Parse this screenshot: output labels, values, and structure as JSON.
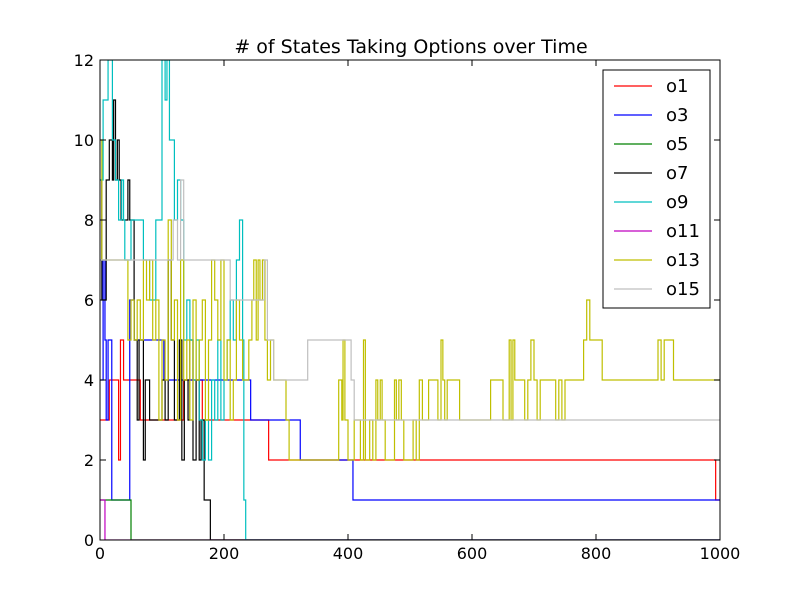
{
  "chart_data": {
    "type": "line",
    "title": "# of States Taking Options over Time",
    "xlabel": "",
    "ylabel": "",
    "xlim": [
      0,
      1000
    ],
    "ylim": [
      0,
      12
    ],
    "x_ticks": [
      0,
      200,
      400,
      600,
      800,
      1000
    ],
    "y_ticks": [
      0,
      2,
      4,
      6,
      8,
      10,
      12
    ],
    "grid": false,
    "legend_position": "top-right",
    "series": [
      {
        "name": "o1",
        "color": "#ff0000",
        "points": [
          [
            0,
            3
          ],
          [
            15,
            4
          ],
          [
            28,
            4
          ],
          [
            30,
            2
          ],
          [
            33,
            5
          ],
          [
            36,
            5
          ],
          [
            38,
            4
          ],
          [
            60,
            4
          ],
          [
            65,
            3
          ],
          [
            130,
            3
          ],
          [
            135,
            4
          ],
          [
            160,
            4
          ],
          [
            165,
            3
          ],
          [
            270,
            3
          ],
          [
            272,
            2
          ],
          [
            990,
            2
          ],
          [
            993,
            1
          ],
          [
            1000,
            1
          ]
        ]
      },
      {
        "name": "o3",
        "color": "#0000ff",
        "points": [
          [
            0,
            4
          ],
          [
            5,
            7
          ],
          [
            8,
            5
          ],
          [
            10,
            3
          ],
          [
            13,
            5
          ],
          [
            17,
            5
          ],
          [
            19,
            1
          ],
          [
            45,
            1
          ],
          [
            48,
            6
          ],
          [
            55,
            5
          ],
          [
            100,
            5
          ],
          [
            103,
            4
          ],
          [
            240,
            4
          ],
          [
            243,
            3
          ],
          [
            320,
            3
          ],
          [
            323,
            2
          ],
          [
            405,
            2
          ],
          [
            408,
            1
          ],
          [
            1000,
            1
          ]
        ]
      },
      {
        "name": "o5",
        "color": "#008000",
        "points": [
          [
            0,
            1
          ],
          [
            48,
            1
          ],
          [
            50,
            0
          ],
          [
            1000,
            0
          ]
        ]
      },
      {
        "name": "o7",
        "color": "#000000",
        "points": [
          [
            0,
            9
          ],
          [
            3,
            6
          ],
          [
            6,
            6
          ],
          [
            10,
            9
          ],
          [
            15,
            10
          ],
          [
            20,
            9
          ],
          [
            22,
            11
          ],
          [
            25,
            9
          ],
          [
            28,
            10
          ],
          [
            31,
            9
          ],
          [
            34,
            8
          ],
          [
            42,
            8
          ],
          [
            45,
            9
          ],
          [
            48,
            8
          ],
          [
            52,
            8
          ],
          [
            55,
            5
          ],
          [
            60,
            3
          ],
          [
            63,
            5
          ],
          [
            67,
            5
          ],
          [
            70,
            2
          ],
          [
            73,
            4
          ],
          [
            80,
            3
          ],
          [
            100,
            4
          ],
          [
            105,
            3
          ],
          [
            110,
            7
          ],
          [
            115,
            5
          ],
          [
            120,
            3
          ],
          [
            125,
            3
          ],
          [
            128,
            5
          ],
          [
            132,
            2
          ],
          [
            136,
            4
          ],
          [
            142,
            3
          ],
          [
            145,
            5
          ],
          [
            150,
            2
          ],
          [
            155,
            4
          ],
          [
            160,
            2
          ],
          [
            163,
            3
          ],
          [
            168,
            1
          ],
          [
            175,
            1
          ],
          [
            178,
            0
          ],
          [
            1000,
            0
          ]
        ]
      },
      {
        "name": "o9",
        "color": "#00bfbf",
        "points": [
          [
            0,
            9
          ],
          [
            5,
            11
          ],
          [
            10,
            11
          ],
          [
            13,
            12
          ],
          [
            15,
            12
          ],
          [
            20,
            10
          ],
          [
            25,
            9
          ],
          [
            30,
            8
          ],
          [
            35,
            9
          ],
          [
            38,
            8
          ],
          [
            40,
            7
          ],
          [
            45,
            7
          ],
          [
            50,
            8
          ],
          [
            60,
            8
          ],
          [
            70,
            7
          ],
          [
            80,
            6
          ],
          [
            90,
            8
          ],
          [
            100,
            12
          ],
          [
            105,
            11
          ],
          [
            108,
            12
          ],
          [
            112,
            10
          ],
          [
            116,
            10
          ],
          [
            120,
            8
          ],
          [
            125,
            9
          ],
          [
            130,
            8
          ],
          [
            135,
            5
          ],
          [
            140,
            6
          ],
          [
            145,
            5
          ],
          [
            150,
            4
          ],
          [
            155,
            5
          ],
          [
            160,
            3
          ],
          [
            165,
            2
          ],
          [
            170,
            3
          ],
          [
            175,
            2
          ],
          [
            180,
            4
          ],
          [
            185,
            3
          ],
          [
            190,
            5
          ],
          [
            195,
            3
          ],
          [
            200,
            4
          ],
          [
            205,
            5
          ],
          [
            210,
            6
          ],
          [
            215,
            5
          ],
          [
            220,
            7
          ],
          [
            225,
            8
          ],
          [
            230,
            5
          ],
          [
            232,
            1
          ],
          [
            235,
            0
          ],
          [
            1000,
            0
          ]
        ]
      },
      {
        "name": "o11",
        "color": "#bf00bf",
        "points": [
          [
            0,
            1
          ],
          [
            8,
            0
          ],
          [
            1000,
            0
          ]
        ]
      },
      {
        "name": "o13",
        "color": "#bfbf00",
        "points": [
          [
            0,
            10
          ],
          [
            3,
            7
          ],
          [
            8,
            7
          ],
          [
            12,
            7
          ],
          [
            20,
            7
          ],
          [
            30,
            7
          ],
          [
            40,
            7
          ],
          [
            45,
            5
          ],
          [
            50,
            6
          ],
          [
            55,
            5
          ],
          [
            60,
            6
          ],
          [
            65,
            5
          ],
          [
            70,
            7
          ],
          [
            75,
            6
          ],
          [
            80,
            7
          ],
          [
            85,
            5
          ],
          [
            90,
            6
          ],
          [
            95,
            3
          ],
          [
            100,
            5
          ],
          [
            105,
            4
          ],
          [
            110,
            8
          ],
          [
            115,
            5
          ],
          [
            120,
            6
          ],
          [
            125,
            3
          ],
          [
            130,
            7
          ],
          [
            135,
            4
          ],
          [
            140,
            5
          ],
          [
            145,
            3
          ],
          [
            150,
            6
          ],
          [
            155,
            4
          ],
          [
            160,
            5
          ],
          [
            165,
            6
          ],
          [
            170,
            3
          ],
          [
            175,
            5
          ],
          [
            180,
            7
          ],
          [
            185,
            6
          ],
          [
            190,
            5
          ],
          [
            195,
            7
          ],
          [
            200,
            4
          ],
          [
            205,
            5
          ],
          [
            210,
            3
          ],
          [
            215,
            4
          ],
          [
            220,
            6
          ],
          [
            225,
            5
          ],
          [
            230,
            4
          ],
          [
            240,
            5
          ],
          [
            245,
            6
          ],
          [
            248,
            7
          ],
          [
            252,
            5
          ],
          [
            255,
            7
          ],
          [
            258,
            6
          ],
          [
            262,
            7
          ],
          [
            266,
            5
          ],
          [
            270,
            4
          ],
          [
            275,
            5
          ],
          [
            280,
            4
          ],
          [
            290,
            4
          ],
          [
            300,
            3
          ],
          [
            305,
            2
          ],
          [
            330,
            2
          ],
          [
            360,
            2
          ],
          [
            380,
            2
          ],
          [
            385,
            4
          ],
          [
            390,
            3
          ],
          [
            392,
            5
          ],
          [
            395,
            3
          ],
          [
            400,
            2
          ],
          [
            405,
            2
          ],
          [
            410,
            3
          ],
          [
            420,
            2
          ],
          [
            425,
            5
          ],
          [
            428,
            2
          ],
          [
            435,
            3
          ],
          [
            440,
            2
          ],
          [
            445,
            4
          ],
          [
            448,
            3
          ],
          [
            452,
            4
          ],
          [
            455,
            3
          ],
          [
            460,
            2
          ],
          [
            470,
            2
          ],
          [
            475,
            4
          ],
          [
            478,
            3
          ],
          [
            482,
            4
          ],
          [
            486,
            3
          ],
          [
            490,
            2
          ],
          [
            500,
            2
          ],
          [
            505,
            3
          ],
          [
            510,
            2
          ],
          [
            515,
            4
          ],
          [
            520,
            3
          ],
          [
            525,
            3
          ],
          [
            530,
            4
          ],
          [
            540,
            4
          ],
          [
            545,
            3
          ],
          [
            550,
            5
          ],
          [
            553,
            4
          ],
          [
            556,
            3
          ],
          [
            560,
            4
          ],
          [
            570,
            4
          ],
          [
            580,
            3
          ],
          [
            600,
            3
          ],
          [
            610,
            3
          ],
          [
            620,
            3
          ],
          [
            630,
            4
          ],
          [
            640,
            4
          ],
          [
            650,
            3
          ],
          [
            660,
            5
          ],
          [
            663,
            3
          ],
          [
            666,
            5
          ],
          [
            669,
            4
          ],
          [
            680,
            4
          ],
          [
            685,
            3
          ],
          [
            690,
            4
          ],
          [
            695,
            5
          ],
          [
            700,
            4
          ],
          [
            705,
            3
          ],
          [
            710,
            4
          ],
          [
            730,
            4
          ],
          [
            735,
            3
          ],
          [
            740,
            4
          ],
          [
            745,
            3
          ],
          [
            750,
            4
          ],
          [
            760,
            4
          ],
          [
            765,
            4
          ],
          [
            770,
            4
          ],
          [
            780,
            5
          ],
          [
            785,
            6
          ],
          [
            790,
            5
          ],
          [
            800,
            5
          ],
          [
            810,
            4
          ],
          [
            820,
            4
          ],
          [
            840,
            4
          ],
          [
            860,
            4
          ],
          [
            880,
            4
          ],
          [
            900,
            5
          ],
          [
            905,
            4
          ],
          [
            910,
            5
          ],
          [
            920,
            5
          ],
          [
            925,
            4
          ],
          [
            960,
            4
          ],
          [
            970,
            4
          ],
          [
            980,
            4
          ],
          [
            1000,
            4
          ]
        ]
      },
      {
        "name": "o15",
        "color": "#bfbfbf",
        "points": [
          [
            0,
            7
          ],
          [
            20,
            7
          ],
          [
            40,
            7
          ],
          [
            60,
            7
          ],
          [
            80,
            7
          ],
          [
            100,
            7
          ],
          [
            115,
            7
          ],
          [
            118,
            8
          ],
          [
            125,
            7
          ],
          [
            130,
            9
          ],
          [
            135,
            7
          ],
          [
            140,
            7
          ],
          [
            200,
            7
          ],
          [
            210,
            6
          ],
          [
            240,
            6
          ],
          [
            260,
            6
          ],
          [
            265,
            7
          ],
          [
            270,
            5
          ],
          [
            280,
            4
          ],
          [
            300,
            4
          ],
          [
            320,
            4
          ],
          [
            335,
            5
          ],
          [
            400,
            5
          ],
          [
            405,
            4
          ],
          [
            410,
            3
          ],
          [
            420,
            3
          ],
          [
            500,
            3
          ],
          [
            600,
            3
          ],
          [
            700,
            3
          ],
          [
            800,
            3
          ],
          [
            900,
            3
          ],
          [
            1000,
            3
          ]
        ]
      }
    ]
  }
}
